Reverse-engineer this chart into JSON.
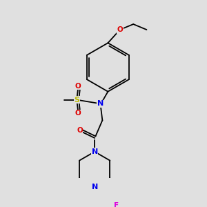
{
  "background_color": "#e0e0e0",
  "atom_colors": {
    "C": "#000000",
    "N": "#0000ee",
    "O": "#dd0000",
    "S": "#bbbb00",
    "F": "#dd00dd"
  },
  "figsize": [
    3.0,
    3.0
  ],
  "dpi": 100
}
